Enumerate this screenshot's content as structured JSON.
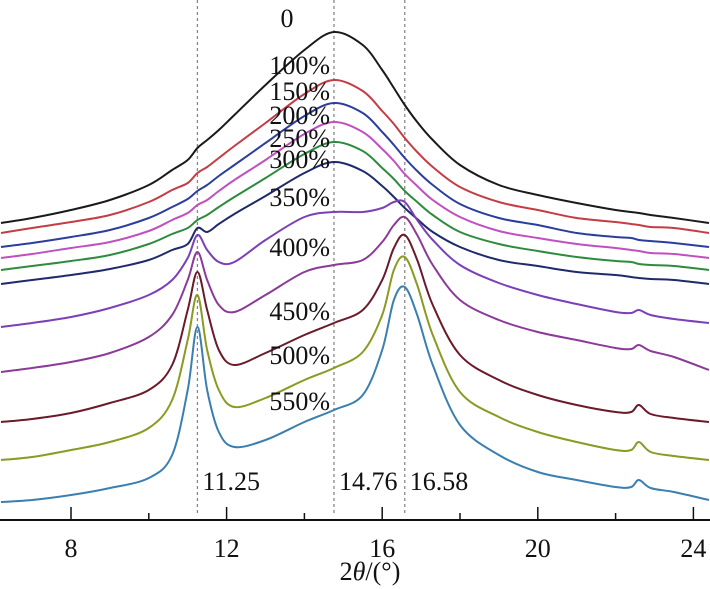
{
  "chart_data": {
    "type": "line",
    "title": "",
    "xlabel_prefix": "2",
    "xlabel_symbol": "θ",
    "xlabel_suffix": "/(°)",
    "ylabel": "",
    "xlim": [
      6.2,
      24.4
    ],
    "ylim": [
      0,
      520
    ],
    "xticks": [
      8,
      12,
      16,
      20,
      24
    ],
    "xtick_labels": [
      "8",
      "12",
      "16",
      "20",
      "24"
    ],
    "minor_xticks": [
      10,
      14,
      18,
      22
    ],
    "grid": false,
    "reference_lines": [
      {
        "x": 11.25,
        "label": "11.25"
      },
      {
        "x": 14.76,
        "label": "14.76"
      },
      {
        "x": 16.58,
        "label": "16.58"
      }
    ],
    "x": [
      6.2,
      7,
      8,
      9,
      10,
      10.6,
      11.0,
      11.25,
      11.5,
      11.8,
      12.2,
      13,
      14,
      14.76,
      15.5,
      16.0,
      16.3,
      16.58,
      16.9,
      17.3,
      18,
      19,
      20,
      21,
      22,
      22.4,
      22.6,
      22.9,
      23.5,
      24.4
    ],
    "series": [
      {
        "name": "0",
        "color": "#1a1a1a",
        "values": [
          297,
          302,
          310,
          320,
          335,
          350,
          360,
          372,
          380,
          390,
          405,
          435,
          470,
          488,
          475,
          450,
          432,
          415,
          398,
          380,
          355,
          335,
          325,
          317,
          310,
          308,
          307,
          305,
          302,
          297
        ]
      },
      {
        "name": "100%",
        "color": "#c43c44",
        "values": [
          287,
          292,
          298,
          305,
          318,
          330,
          337,
          347,
          353,
          362,
          374,
          397,
          426,
          440,
          429,
          409,
          396,
          382,
          368,
          353,
          333,
          318,
          310,
          302,
          298,
          296,
          295,
          293,
          292,
          287
        ]
      },
      {
        "name": "150%",
        "color": "#2b3e9c",
        "values": [
          273,
          277,
          283,
          290,
          302,
          313,
          321,
          329,
          335,
          344,
          355,
          377,
          404,
          417,
          407,
          388,
          375,
          362,
          349,
          335,
          316,
          302,
          295,
          287,
          283,
          282,
          280,
          279,
          277,
          273
        ]
      },
      {
        "name": "200%",
        "color": "#c04fc0",
        "values": [
          262,
          266,
          272,
          278,
          289,
          300,
          307,
          315,
          320,
          329,
          340,
          360,
          386,
          398,
          388,
          371,
          359,
          346,
          334,
          320,
          303,
          289,
          282,
          276,
          272,
          270,
          269,
          267,
          266,
          262
        ]
      },
      {
        "name": "250%",
        "color": "#2e8b3e",
        "values": [
          250,
          254,
          259,
          265,
          276,
          286,
          292,
          300,
          305,
          313,
          323,
          342,
          366,
          378,
          369,
          352,
          341,
          329,
          318,
          305,
          288,
          276,
          269,
          263,
          259,
          258,
          256,
          255,
          254,
          250
        ]
      },
      {
        "name": "300%",
        "color": "#1f2a6b",
        "values": [
          236,
          240,
          245,
          251,
          260,
          270,
          276,
          292,
          288,
          296,
          306,
          324,
          347,
          358,
          349,
          334,
          323,
          312,
          301,
          288,
          273,
          260,
          254,
          248,
          245,
          243,
          242,
          241,
          240,
          236
        ]
      },
      {
        "name": "350%",
        "color": "#7b3fb8",
        "values": [
          193,
          197,
          203,
          212,
          225,
          240,
          262,
          285,
          270,
          258,
          258,
          280,
          303,
          308,
          308,
          312,
          318,
          318,
          300,
          280,
          255,
          237,
          225,
          216,
          208,
          207,
          210,
          205,
          201,
          197
        ]
      },
      {
        "name": "400%",
        "color": "#8c3a98",
        "values": [
          148,
          152,
          158,
          167,
          183,
          205,
          240,
          268,
          240,
          215,
          208,
          225,
          248,
          255,
          260,
          278,
          295,
          303,
          285,
          255,
          220,
          200,
          188,
          180,
          172,
          171,
          175,
          169,
          163,
          150
        ]
      },
      {
        "name": "450%",
        "color": "#6b1a2a",
        "values": [
          98,
          101,
          107,
          117,
          130,
          155,
          210,
          248,
          210,
          170,
          155,
          167,
          185,
          197,
          210,
          240,
          272,
          285,
          260,
          215,
          165,
          140,
          125,
          115,
          108,
          108,
          115,
          106,
          102,
          98
        ]
      },
      {
        "name": "500%",
        "color": "#8a9a22",
        "values": [
          60,
          63,
          70,
          78,
          92,
          120,
          180,
          225,
          170,
          130,
          113,
          122,
          140,
          152,
          168,
          205,
          250,
          263,
          235,
          185,
          128,
          103,
          88,
          78,
          70,
          70,
          78,
          68,
          64,
          60
        ]
      },
      {
        "name": "550%",
        "color": "#3a7fb0",
        "values": [
          18,
          20,
          25,
          32,
          42,
          65,
          130,
          193,
          130,
          88,
          73,
          80,
          98,
          110,
          125,
          170,
          220,
          233,
          205,
          155,
          95,
          65,
          48,
          40,
          33,
          33,
          40,
          32,
          28,
          20
        ]
      }
    ]
  }
}
